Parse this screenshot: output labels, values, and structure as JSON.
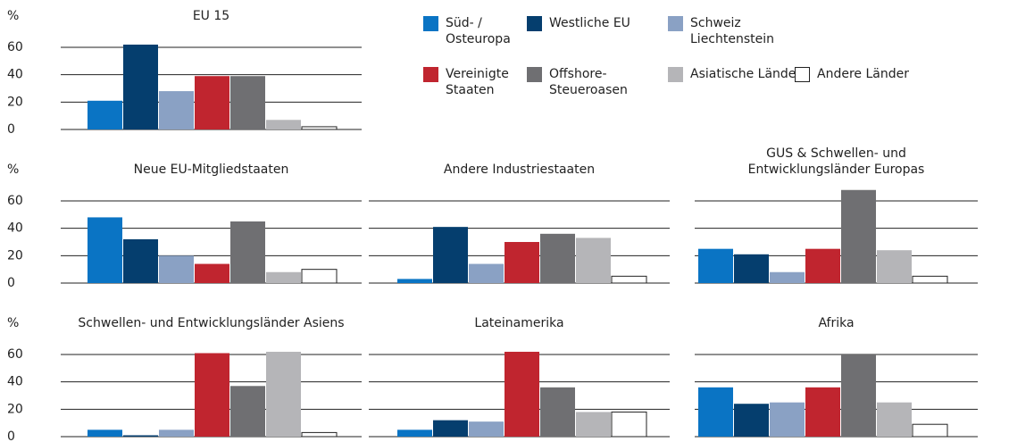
{
  "chart_data": {
    "type": "bar",
    "ylabel": "%",
    "categories": [
      "Süd- / Osteuropa",
      "Westliche EU",
      "Schweiz Liechtenstein",
      "Vereinigte Staaten",
      "Offshore-Steueroasen",
      "Asiatische Länder",
      "Andere Länder"
    ],
    "colors": [
      "#0a74c4",
      "#053e6e",
      "#8aa1c4",
      "#c0252f",
      "#6f6f72",
      "#b5b5b8",
      "#ffffff"
    ],
    "ylim": [
      0,
      70
    ],
    "yticks": [
      0,
      20,
      40,
      60
    ],
    "grid": true,
    "panels": [
      {
        "title": "EU 15",
        "values": [
          21,
          62,
          28,
          39,
          39,
          7,
          2
        ]
      },
      {
        "title": "Neue EU-Mitgliedstaaten",
        "values": [
          48,
          32,
          20,
          14,
          45,
          8,
          10
        ]
      },
      {
        "title": "Andere Industriestaaten",
        "values": [
          3,
          41,
          14,
          30,
          36,
          33,
          5
        ]
      },
      {
        "title": "GUS & Schwellen- und Entwicklungsländer Europas",
        "values": [
          25,
          21,
          8,
          25,
          68,
          24,
          5
        ]
      },
      {
        "title": "Schwellen- und Entwicklungsländer Asiens",
        "values": [
          5,
          1,
          5,
          61,
          37,
          62,
          3
        ]
      },
      {
        "title": "Lateinamerika",
        "values": [
          5,
          12,
          11,
          62,
          36,
          18,
          18
        ]
      },
      {
        "title": "Afrika",
        "values": [
          36,
          24,
          25,
          36,
          60,
          25,
          9
        ]
      }
    ]
  }
}
